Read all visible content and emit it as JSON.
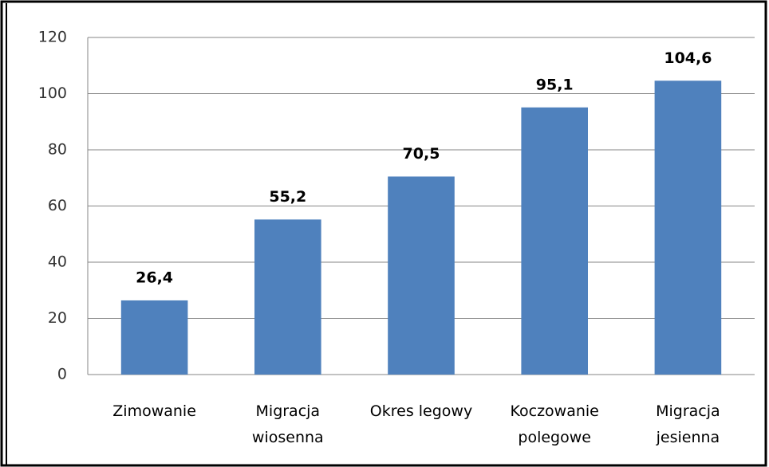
{
  "chart_data": {
    "type": "bar",
    "categories": [
      "Zimowanie",
      "Migracja\nwiosenna",
      "Okres legowy",
      "Koczowanie\npolegowe",
      "Migracja\njesienna"
    ],
    "values": [
      26.4,
      55.2,
      70.5,
      95.1,
      104.6
    ],
    "value_labels": [
      "26,4",
      "55,2",
      "70,5",
      "95,1",
      "104,6"
    ],
    "color": "#4f81bd",
    "ylim": [
      0,
      120
    ],
    "yticks": [
      0,
      20,
      40,
      60,
      80,
      100,
      120
    ],
    "grid": true
  }
}
